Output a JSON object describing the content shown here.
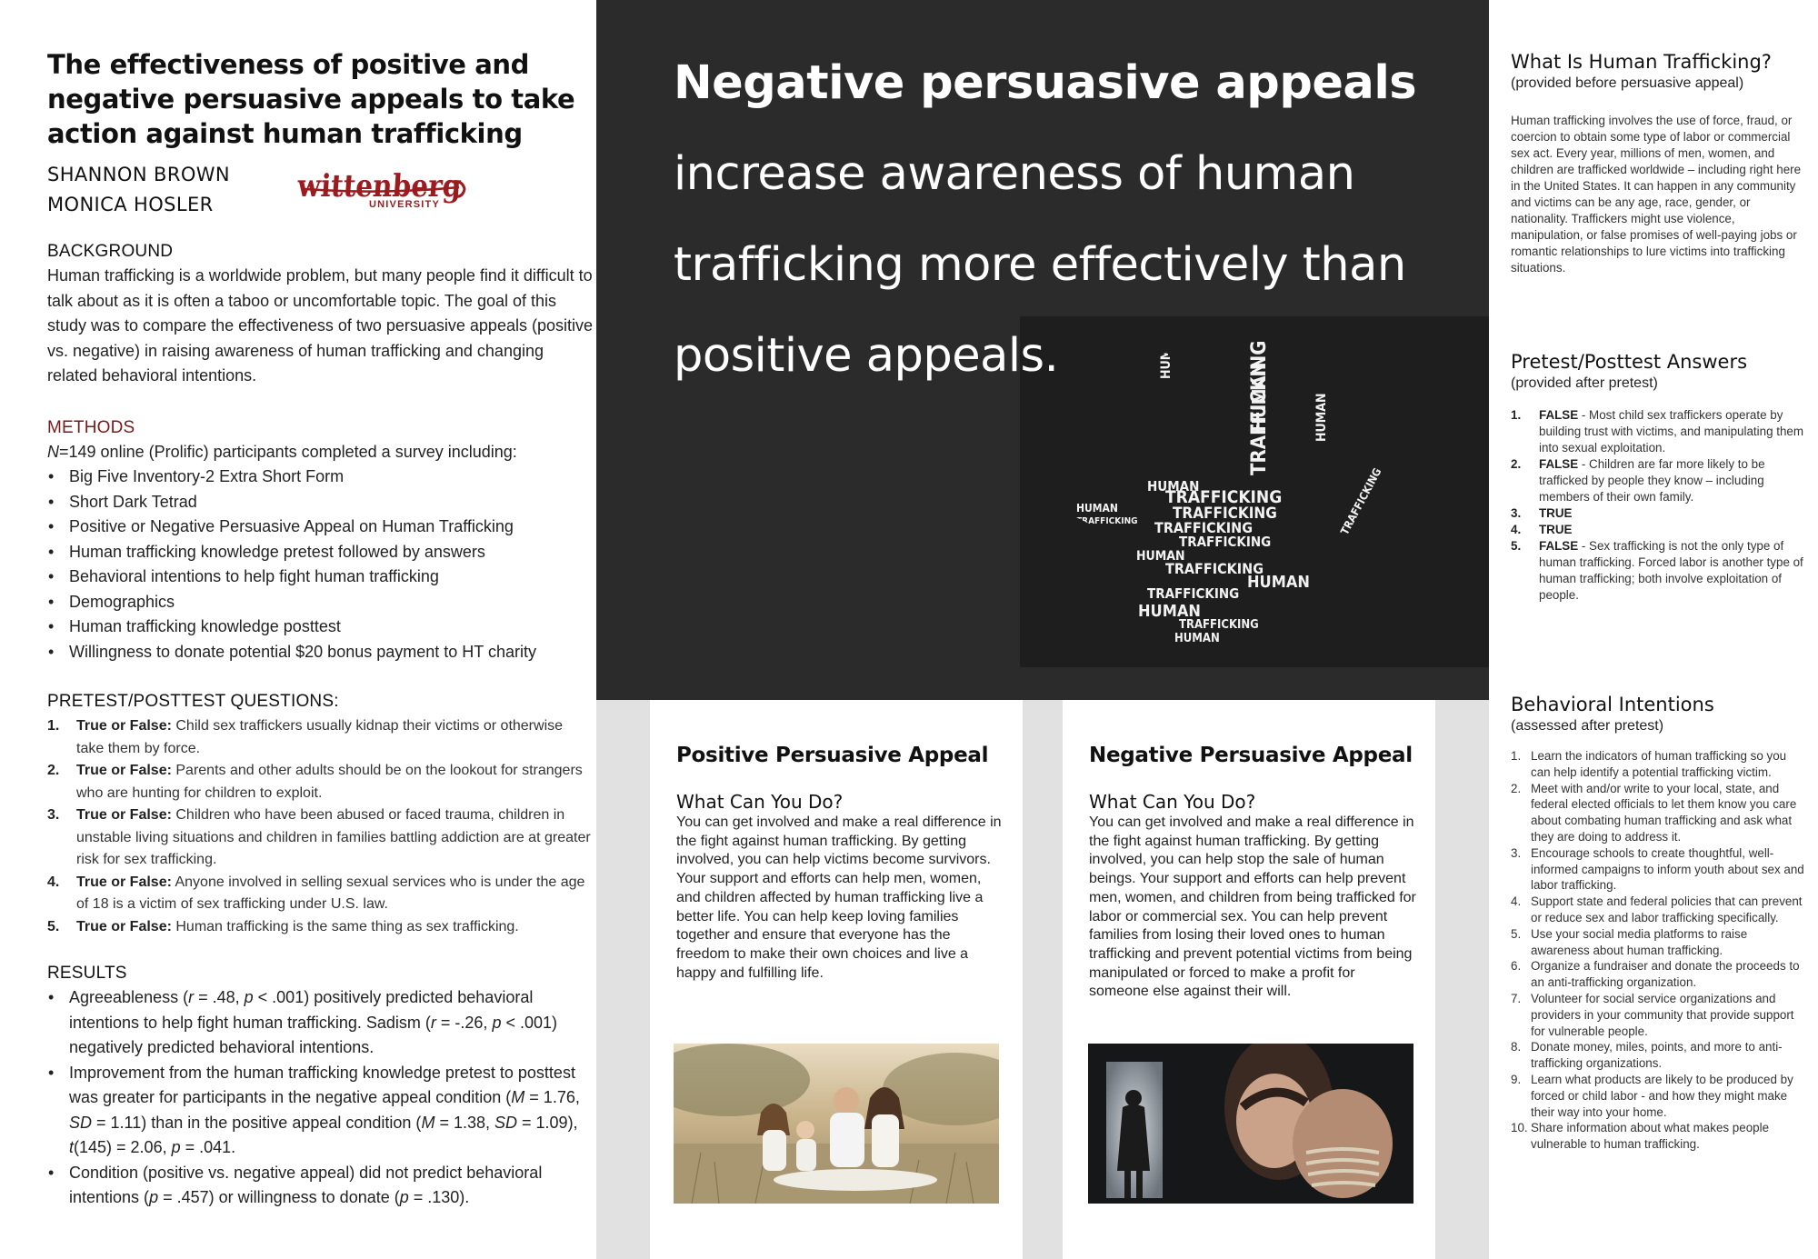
{
  "poster": {
    "title": "The effectiveness of positive and negative persuasive appeals to take action against human trafficking",
    "authors": [
      "SHANNON  BROWN",
      "MONICA HOSLER"
    ],
    "logo": {
      "text": "wittenberg",
      "subtext": "UNIVERSITY",
      "color": "#9b1b1f"
    }
  },
  "background": {
    "heading": "BACKGROUND",
    "text": "Human trafficking is a worldwide problem, but many people find it difficult to talk about as it is often a taboo or uncomfortable topic. The goal of this study was to compare the effectiveness of two persuasive appeals (positive vs. negative) in raising awareness of human trafficking and changing related behavioral intentions."
  },
  "methods": {
    "heading": "METHODS",
    "n_italic": "N",
    "intro_rest": "=149 online (Prolific) participants completed a survey including:",
    "items": [
      "Big Five Inventory-2 Extra Short Form",
      "Short Dark Tetrad",
      "Positive or Negative Persuasive Appeal on Human Trafficking",
      "Human trafficking knowledge pretest followed by answers",
      "Behavioral intentions to help fight human trafficking",
      "Demographics",
      "Human trafficking knowledge posttest",
      "Willingness to donate potential $20 bonus payment to HT charity"
    ]
  },
  "questions": {
    "heading": "PRETEST/POSTTEST QUESTIONS:",
    "label": "True or False:",
    "items": [
      {
        "num": "1.",
        "text": "Child sex traffickers usually kidnap their victims or otherwise take them by force."
      },
      {
        "num": "2.",
        "text": "Parents and other adults should be on the lookout for strangers who are hunting for children to exploit."
      },
      {
        "num": "3.",
        "text": "Children who have been abused or faced trauma, children in unstable living situations and children in families battling addiction are at greater risk for sex trafficking."
      },
      {
        "num": "4.",
        "text": "Anyone involved in selling sexual services who is under the age of 18 is a victim of sex trafficking under U.S. law."
      },
      {
        "num": "5.",
        "text": "Human trafficking is the same thing as sex trafficking."
      }
    ]
  },
  "results": {
    "heading": "RESULTS",
    "r1": {
      "a": "Agreeableness (",
      "r": "r",
      "b": " = .48, ",
      "p": "p",
      "c": " < .001) positively predicted behavioral intentions to help fight human trafficking. Sadism (",
      "r2": "r",
      "d": " = -.26, ",
      "p2": "p",
      "e": " < .001) negatively predicted behavioral intentions."
    },
    "r2": {
      "a": "Improvement from the human trafficking knowledge pretest to posttest was greater for participants in the negative appeal condition (",
      "m": "M",
      "b": " = 1.76, ",
      "sd": "SD",
      "c": " = 1.11) than in the positive appeal condition (",
      "m2": "M",
      "d": " = 1.38, ",
      "sd2": "SD",
      "e": " = 1.09), ",
      "t": "t",
      "f": "(145) = 2.06, ",
      "p": "p",
      "g": " = .041."
    },
    "r3": {
      "a": "Condition (positive vs. negative appeal) did not predict behavioral intentions (",
      "p": "p",
      "b": " = .457) or willingness to donate (",
      "p2": "p",
      "c": " = .130)."
    }
  },
  "headline": {
    "bold": "Negative persuasive appeals",
    "line2": "increase awareness of human",
    "line3": "trafficking more effectively than",
    "line4": "positive appeals."
  },
  "hand_words": {
    "big": "TRAFFICKING",
    "small": "HUMAN"
  },
  "positive_card": {
    "title": "Positive Persuasive Appeal",
    "subtitle": "What Can You Do?",
    "text": "You can get involved and make a real difference in the fight against human trafficking. By getting involved, you can help victims become survivors. Your support and efforts can help men, women, and children affected by human trafficking live a better life. You can help keep loving families together and ensure that everyone has the freedom to make their own choices and live a happy and fulfilling life."
  },
  "negative_card": {
    "title": "Negative Persuasive Appeal",
    "subtitle": "What Can You Do?",
    "text": "You can get involved and make a real difference in the fight against human trafficking. By getting involved, you can help stop the sale of human beings. Your support and efforts can help prevent men, women, and children from being trafficked for labor or commercial sex. You can help prevent families from losing their loved ones to human trafficking and prevent potential victims from being manipulated or forced to make a profit for someone else against their will."
  },
  "what_is": {
    "heading": "What Is Human Trafficking?",
    "sub": "(provided before persuasive appeal)",
    "text": "Human trafficking involves the use of force, fraud, or coercion to obtain some type of labor or commercial sex act. Every year, millions of men, women, and children are trafficked worldwide – including right here in the United States. It can happen in any community and victims can be any age, race, gender, or nationality. Traffickers might use violence, manipulation, or false promises of well-paying jobs or romantic relationships to lure victims into trafficking situations."
  },
  "answers": {
    "heading": "Pretest/Posttest Answers",
    "sub": "(provided after pretest)",
    "items": [
      {
        "num": "1.",
        "verdict": "FALSE",
        "text": " - Most child sex traffickers operate by building trust with victims, and manipulating them into sexual exploitation."
      },
      {
        "num": "2.",
        "verdict": "FALSE",
        "text": " - Children are far more likely to be trafficked by people they know – including members of their own family."
      },
      {
        "num": "3.",
        "verdict": "TRUE",
        "text": ""
      },
      {
        "num": "4.",
        "verdict": "TRUE",
        "text": ""
      },
      {
        "num": "5.",
        "verdict": "FALSE",
        "text": " - Sex trafficking is not the only type of human trafficking. Forced labor is another type of human trafficking; both involve exploitation of people."
      }
    ]
  },
  "intentions": {
    "heading": "Behavioral Intentions",
    "sub": "(assessed after pretest)",
    "items": [
      {
        "num": "1.",
        "text": "Learn the indicators of human trafficking so you can help identify a potential trafficking victim."
      },
      {
        "num": "2.",
        "text": "Meet with and/or write to your local, state, and federal elected officials to let them know you care about combating human trafficking and ask what they are doing to address it."
      },
      {
        "num": "3.",
        "text": "Encourage schools to create thoughtful, well-informed campaigns to inform youth about sex and labor trafficking."
      },
      {
        "num": "4.",
        "text": "Support state and federal policies that can prevent or reduce sex and labor trafficking specifically."
      },
      {
        "num": "5.",
        "text": "Use your social media platforms to raise awareness about human trafficking."
      },
      {
        "num": "6.",
        "text": "Organize a fundraiser and donate the proceeds to an anti-trafficking organization."
      },
      {
        "num": "7.",
        "text": "Volunteer for social service organizations and providers in your community that provide support for vulnerable people."
      },
      {
        "num": "8.",
        "text": "Donate money, miles, points, and more to anti-trafficking organizations."
      },
      {
        "num": "9.",
        "text": "Learn what products are likely to be produced by forced or child labor - and how they might make their way into your home."
      },
      {
        "num": "10.",
        "text": "Share information about what makes people vulnerable to human trafficking."
      }
    ]
  },
  "colors": {
    "dark_panel": "#2b2b2b",
    "methods_red": "#7a1a1a",
    "light_panel": "#e1e1e1"
  }
}
